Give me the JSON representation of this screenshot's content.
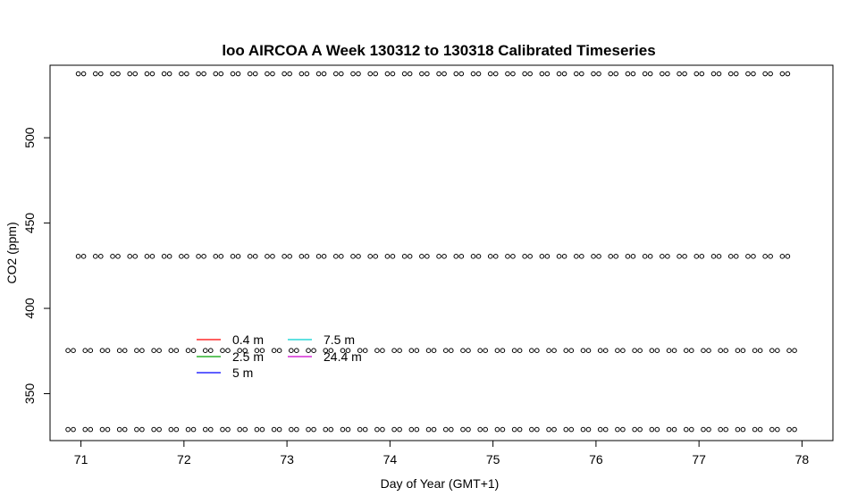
{
  "chart_data": {
    "type": "scatter",
    "title": "loo AIRCOA A  Week 130312 to 130318  Calibrated Timeseries",
    "xlabel": "Day of Year (GMT+1)",
    "ylabel": "CO2 (ppm)",
    "xlim": [
      70.7,
      78.3
    ],
    "ylim": [
      322.5,
      542.5
    ],
    "xticks": [
      71,
      72,
      73,
      74,
      75,
      76,
      77,
      78
    ],
    "yticks": [
      350,
      400,
      450,
      500
    ],
    "marker": "open-circle",
    "grid": false,
    "legend_position": "center-left",
    "rows": [
      {
        "y": 537.5,
        "x_start": 71.0,
        "x_end": 78.0
      },
      {
        "y": 430.5,
        "x_start": 71.0,
        "x_end": 78.0
      },
      {
        "y": 375.3,
        "x_start": 70.9,
        "x_end": 78.0
      },
      {
        "y": 329.0,
        "x_start": 70.9,
        "x_end": 78.0
      }
    ],
    "point_interval": 0.1667,
    "series": [
      {
        "name": "0.4 m",
        "color": "#ff0000"
      },
      {
        "name": "2.5 m",
        "color": "#00a000"
      },
      {
        "name": "5 m",
        "color": "#0000ff"
      },
      {
        "name": "7.5 m",
        "color": "#00d0d0"
      },
      {
        "name": "24.4 m",
        "color": "#cc00cc"
      }
    ]
  }
}
